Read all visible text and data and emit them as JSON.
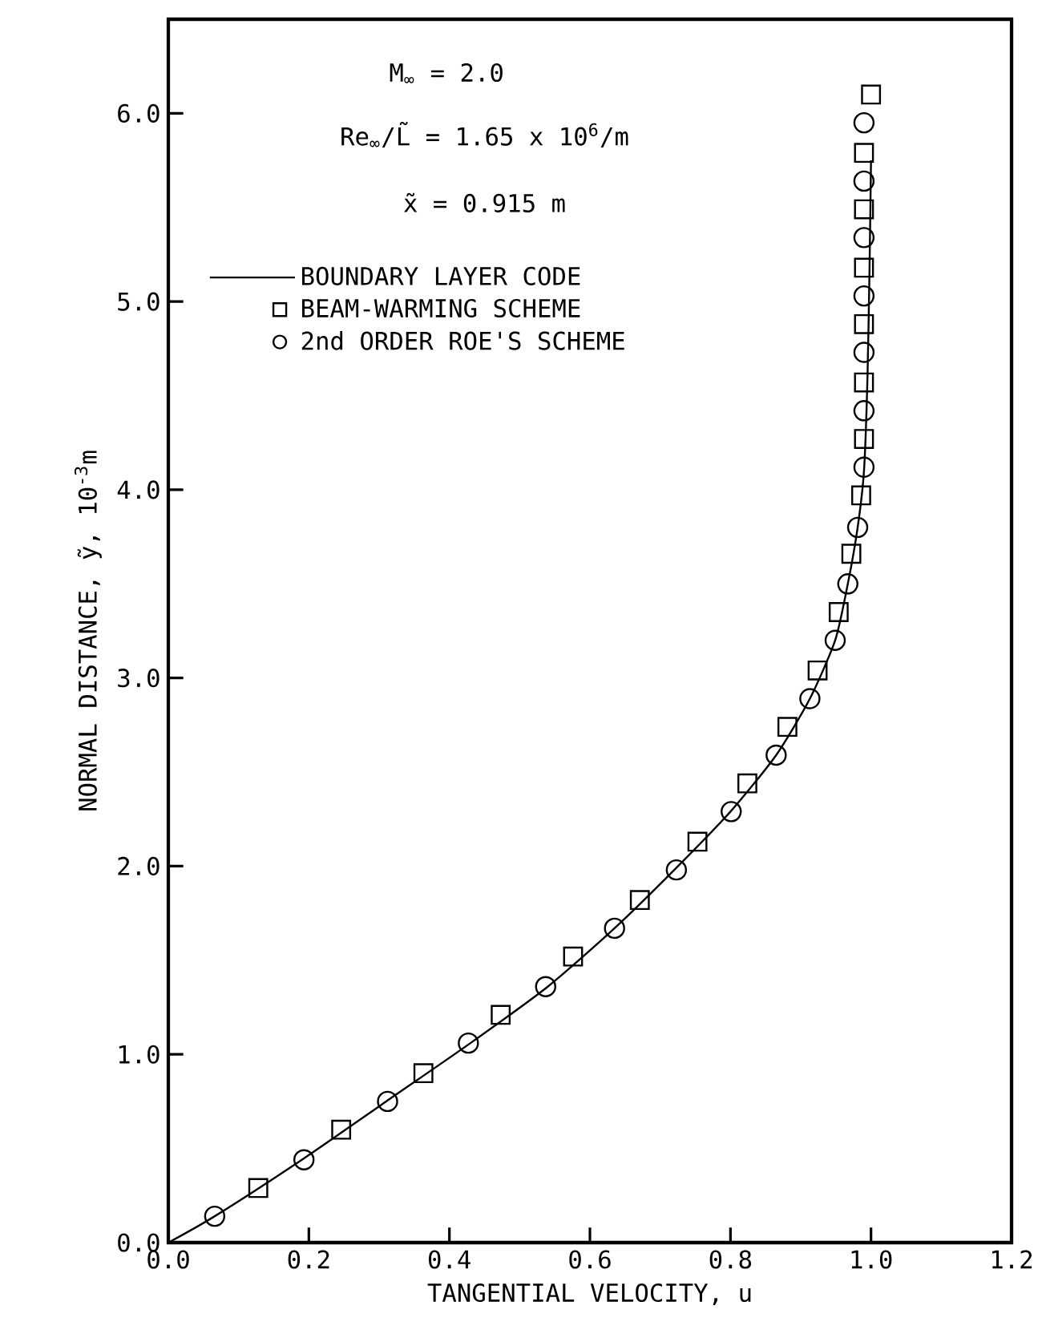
{
  "chart_data": {
    "type": "line",
    "xlabel": "TANGENTIAL VELOCITY, u",
    "ylabel": "NORMAL DISTANCE, ỹ, 10$^{-3}$m",
    "xlim": [
      0,
      1.2
    ],
    "ylim": [
      0,
      6.5
    ],
    "xticks": [
      {
        "value": 0,
        "label": "0.0"
      },
      {
        "value": 0.2,
        "label": "0.2"
      },
      {
        "value": 0.4,
        "label": "0.4"
      },
      {
        "value": 0.6,
        "label": "0.6"
      },
      {
        "value": 0.8,
        "label": "0.8"
      },
      {
        "value": 1.0,
        "label": "1.0"
      },
      {
        "value": 1.2,
        "label": "1.2"
      }
    ],
    "yticks": [
      {
        "value": 0,
        "label": "0.0"
      },
      {
        "value": 1,
        "label": "1.0"
      },
      {
        "value": 2,
        "label": "2.0"
      },
      {
        "value": 3,
        "label": "3.0"
      },
      {
        "value": 4,
        "label": "4.0"
      },
      {
        "value": 5,
        "label": "5.0"
      },
      {
        "value": 6,
        "label": "6.0"
      }
    ],
    "annotations": [
      "M$_{∞}$ = 2.0",
      "Re$_{∞}$/L̃ = 1.65 x 10$^{6}$/m",
      "x̃ = 0.915 m"
    ],
    "legend": "top left",
    "grid": false,
    "series": [
      {
        "name": "BOUNDARY LAYER CODE",
        "type": "line",
        "color": "#000000",
        "marker": "none",
        "line_style": "solid",
        "x": [
          0,
          0.066,
          0.19,
          0.31,
          0.43,
          0.54,
          0.635,
          0.72,
          0.8,
          0.865,
          0.913,
          0.949,
          0.967,
          0.981,
          0.99,
          0.995,
          0.998,
          1.0
        ],
        "values": [
          0,
          0.14,
          0.44,
          0.75,
          1.06,
          1.36,
          1.67,
          1.98,
          2.29,
          2.59,
          2.89,
          3.2,
          3.5,
          3.8,
          4.1,
          4.6,
          5.2,
          5.75
        ]
      },
      {
        "name": "BEAM-WARMING SCHEME",
        "type": "scatter",
        "color": "#000000",
        "marker": "square",
        "x": [
          0.128,
          0.246,
          0.363,
          0.473,
          0.576,
          0.671,
          0.753,
          0.824,
          0.881,
          0.924,
          0.954,
          0.972,
          0.986,
          0.99,
          0.99,
          0.99,
          0.99,
          0.99,
          0.99,
          1.0
        ],
        "values": [
          0.29,
          0.6,
          0.9,
          1.21,
          1.52,
          1.82,
          2.13,
          2.44,
          2.74,
          3.04,
          3.35,
          3.66,
          3.97,
          4.27,
          4.57,
          4.88,
          5.18,
          5.49,
          5.79,
          6.1
        ]
      },
      {
        "name": "2nd ORDER ROE'S SCHEME",
        "type": "scatter",
        "color": "#000000",
        "marker": "circle",
        "x": [
          0.066,
          0.193,
          0.312,
          0.427,
          0.537,
          0.635,
          0.723,
          0.801,
          0.865,
          0.913,
          0.949,
          0.967,
          0.981,
          0.99,
          0.99,
          0.99,
          0.99,
          0.99,
          0.99,
          0.99
        ],
        "values": [
          0.14,
          0.44,
          0.75,
          1.06,
          1.36,
          1.67,
          1.98,
          2.29,
          2.59,
          2.89,
          3.2,
          3.5,
          3.8,
          4.12,
          4.42,
          4.73,
          5.03,
          5.34,
          5.64,
          5.95
        ]
      }
    ]
  }
}
